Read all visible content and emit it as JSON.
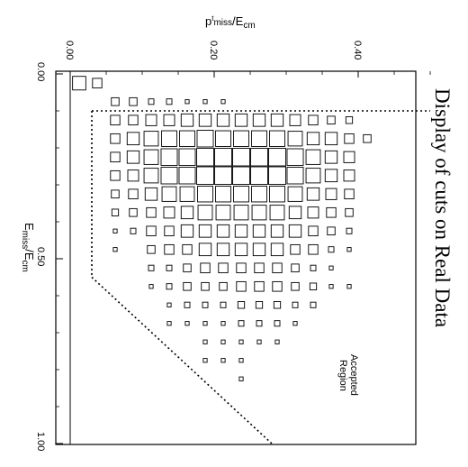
{
  "chart_data": {
    "type": "box-histogram",
    "title": "Display of cuts on Real Data",
    "xlabel": "E_miss/E_cm",
    "xlabel_main": "E",
    "xlabel_sub": "miss",
    "xlabel_den": "/E",
    "xlabel_den_sub": "cm",
    "ylabel": "p^t_miss/E_cm",
    "ylabel_main": "p",
    "ylabel_sup": "t",
    "ylabel_sub": "miss",
    "ylabel_den": "/E",
    "ylabel_den_sub": "cm",
    "xlim": [
      0,
      1
    ],
    "ylim": [
      0,
      0.5
    ],
    "x_ticks": [
      0.0,
      0.5,
      1.0
    ],
    "x_tick_labels": [
      "0.00",
      "0.50",
      "1.00"
    ],
    "y_ticks": [
      0.0,
      0.2,
      0.4
    ],
    "y_tick_labels": [
      "0.00",
      "0.20",
      "0.40"
    ],
    "annotation": [
      "Accepted",
      "Region"
    ],
    "cuts": [
      {
        "type": "horizontal",
        "x": 0.1,
        "y_range": [
          0.03,
          0.5
        ]
      },
      {
        "type": "vertical",
        "y": 0.03,
        "x_range": [
          0.1,
          0.55
        ]
      },
      {
        "type": "diagonal",
        "points": [
          [
            0.55,
            0.03
          ],
          [
            1.0,
            0.28
          ]
        ]
      }
    ],
    "bins": {
      "x_start": 0.0,
      "x_width": 0.05,
      "y_start": 0.0,
      "y_width": 0.025,
      "rows": [
        [
          6,
          3,
          0,
          0,
          0,
          0,
          0,
          0,
          0,
          0,
          0,
          0,
          0,
          0,
          0,
          0,
          0,
          0,
          0,
          0
        ],
        [
          0,
          0,
          2,
          2,
          1,
          1,
          0.5,
          0.5,
          0.5,
          0,
          0,
          0,
          0,
          0,
          0,
          0,
          0,
          0,
          0,
          0
        ],
        [
          0,
          0,
          3,
          3,
          4,
          4,
          5,
          5,
          5,
          5,
          5,
          5,
          4,
          3,
          2,
          1.5,
          0,
          0,
          0,
          0
        ],
        [
          0,
          0,
          3,
          5,
          7,
          8,
          8,
          9,
          8,
          8,
          8,
          8,
          7,
          5,
          5,
          3,
          2,
          0,
          0,
          0
        ],
        [
          0,
          0,
          3,
          5,
          7,
          9,
          9,
          10,
          10,
          10,
          10,
          10,
          9,
          7,
          5,
          4,
          0,
          0,
          0,
          0
        ],
        [
          0,
          0,
          3,
          4,
          7,
          9,
          9,
          10,
          10,
          10,
          10,
          10,
          9,
          7,
          5,
          4,
          0,
          0,
          0,
          0
        ],
        [
          0,
          0,
          2,
          3,
          5,
          7,
          7,
          8,
          8,
          8,
          8,
          8,
          7,
          5,
          4,
          3,
          0,
          0,
          0,
          0
        ],
        [
          0,
          0,
          1.5,
          2,
          3,
          4,
          5,
          7,
          7,
          7,
          7,
          7,
          5,
          4,
          3,
          2,
          0,
          0,
          0,
          0
        ],
        [
          0,
          0,
          0.5,
          1,
          3,
          3,
          5,
          5,
          5,
          5,
          5,
          5,
          5,
          3,
          2,
          1,
          0,
          0,
          0,
          0
        ],
        [
          0,
          0,
          0.5,
          0,
          2,
          3,
          3,
          5,
          5,
          5,
          5,
          5,
          3,
          3,
          1,
          0.5,
          0,
          0,
          0,
          0
        ],
        [
          0,
          0,
          0,
          0,
          1,
          1,
          2,
          3,
          3,
          3,
          3,
          3,
          2,
          1,
          0.5,
          0,
          0,
          0,
          0,
          0
        ],
        [
          0,
          0,
          0,
          0,
          0.5,
          1,
          2,
          2,
          2,
          3,
          3,
          3,
          2,
          1.5,
          0.5,
          0.5,
          0,
          0,
          0,
          0
        ],
        [
          0,
          0,
          0,
          0,
          0,
          0.5,
          1,
          1,
          1,
          1.5,
          1.5,
          1.5,
          1,
          1,
          0,
          0,
          0,
          0,
          0,
          0
        ],
        [
          0,
          0,
          0,
          0,
          0,
          0.5,
          0.5,
          0.5,
          0.5,
          1,
          1,
          1,
          0.5,
          0,
          0,
          0,
          0,
          0,
          0,
          0
        ],
        [
          0,
          0,
          0,
          0,
          0,
          0,
          0,
          0.5,
          0.5,
          0.5,
          0.5,
          0.5,
          0,
          0,
          0,
          0,
          0,
          0,
          0,
          0
        ],
        [
          0,
          0,
          0,
          0,
          0,
          0,
          0,
          0.5,
          0.5,
          0.5,
          0,
          0,
          0,
          0,
          0,
          0,
          0,
          0,
          0,
          0
        ],
        [
          0,
          0,
          0,
          0,
          0,
          0,
          0,
          0,
          0,
          0.5,
          0,
          0,
          0,
          0,
          0,
          0,
          0,
          0,
          0,
          0
        ],
        [
          0,
          0,
          0,
          0,
          0,
          0,
          0,
          0,
          0,
          0,
          0,
          0,
          0,
          0,
          0,
          0,
          0,
          0,
          0,
          0
        ]
      ],
      "max_value": 10
    }
  }
}
